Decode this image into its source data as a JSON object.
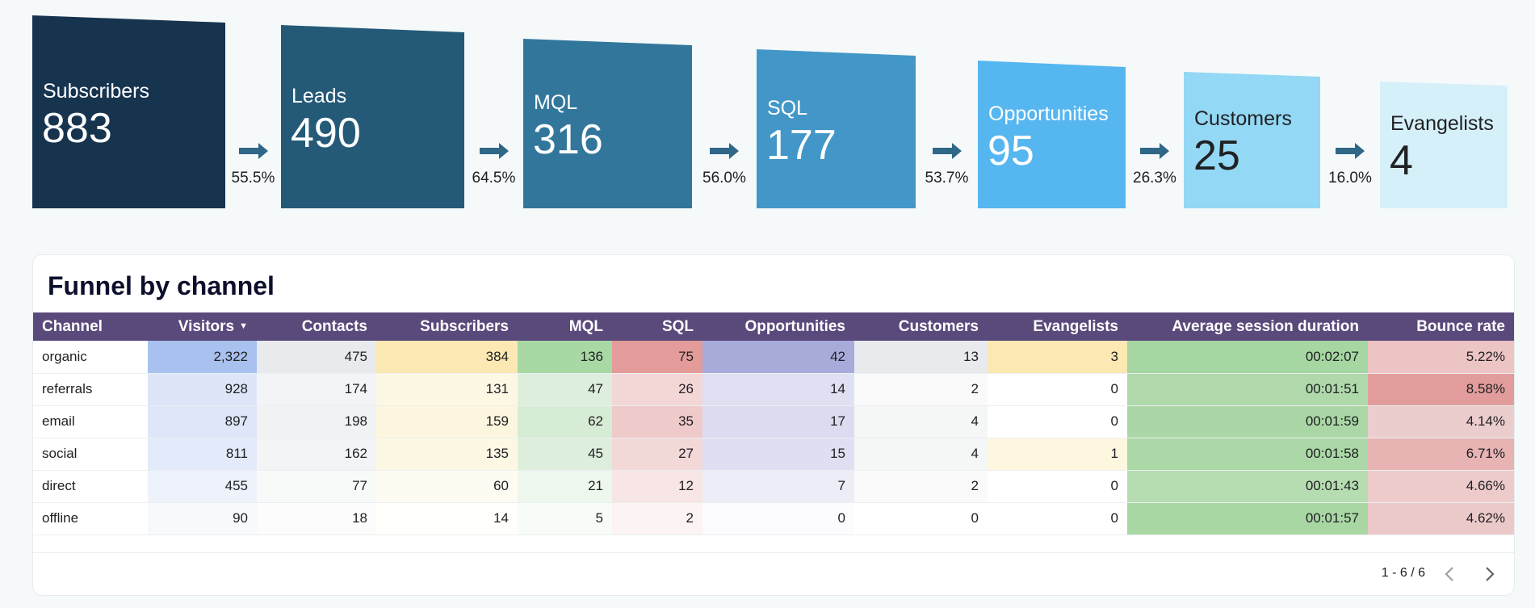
{
  "funnel": {
    "stages": [
      {
        "label": "Subscribers",
        "value": "883",
        "color": "#17344f",
        "text_color": "#ffffff"
      },
      {
        "label": "Leads",
        "value": "490",
        "color": "#245a77",
        "text_color": "#ffffff"
      },
      {
        "label": "MQL",
        "value": "316",
        "color": "#33769c",
        "text_color": "#ffffff"
      },
      {
        "label": "SQL",
        "value": "177",
        "color": "#4397c8",
        "text_color": "#ffffff"
      },
      {
        "label": "Opportunities",
        "value": "95",
        "color": "#56b6f0",
        "text_color": "#ffffff"
      },
      {
        "label": "Customers",
        "value": "25",
        "color": "#93d8f4",
        "text_color": "#202124"
      },
      {
        "label": "Evangelists",
        "value": "4",
        "color": "#d6f0fa",
        "text_color": "#202124"
      }
    ],
    "conversions": [
      "55.5%",
      "64.5%",
      "56.0%",
      "53.7%",
      "26.3%",
      "16.0%"
    ],
    "arrow_color": "#2f6787"
  },
  "table": {
    "title": "Funnel by channel",
    "header_color": "#5a4a7c",
    "columns": [
      "Channel",
      "Visitors",
      "Contacts",
      "Subscribers",
      "MQL",
      "SQL",
      "Opportunities",
      "Customers",
      "Evangelists",
      "Average session duration",
      "Bounce rate"
    ],
    "sorted_column": "Visitors",
    "rows": [
      {
        "cells": [
          "organic",
          "2,322",
          "475",
          "384",
          "136",
          "75",
          "42",
          "13",
          "3",
          "00:02:07",
          "5.22%"
        ]
      },
      {
        "cells": [
          "referrals",
          "928",
          "174",
          "131",
          "47",
          "26",
          "14",
          "2",
          "0",
          "00:01:51",
          "8.58%"
        ]
      },
      {
        "cells": [
          "email",
          "897",
          "198",
          "159",
          "62",
          "35",
          "17",
          "4",
          "0",
          "00:01:59",
          "4.14%"
        ]
      },
      {
        "cells": [
          "social",
          "811",
          "162",
          "135",
          "45",
          "27",
          "15",
          "4",
          "1",
          "00:01:58",
          "6.71%"
        ]
      },
      {
        "cells": [
          "direct",
          "455",
          "77",
          "60",
          "21",
          "12",
          "7",
          "2",
          "0",
          "00:01:43",
          "4.66%"
        ]
      },
      {
        "cells": [
          "offline",
          "90",
          "18",
          "14",
          "5",
          "2",
          "0",
          "0",
          "0",
          "00:01:57",
          "4.62%"
        ]
      }
    ],
    "cell_colors": [
      [
        "#ffffff",
        "#a8c1ee",
        "#e8eaed",
        "#fbe8b2",
        "#a8d9a5",
        "#e39c99",
        "#a8abda",
        "#e8eaed",
        "#fbe8b2",
        "#a6d6a2",
        "#ecc4c4"
      ],
      [
        "#ffffff",
        "#dde6f8",
        "#f3f4f5",
        "#fdf8e4",
        "#ddefdc",
        "#f3d6d6",
        "#dfe0f1",
        "#fafafa",
        "#ffffff",
        "#afd9aa",
        "#e29c9c"
      ],
      [
        "#ffffff",
        "#dee7f9",
        "#f1f2f3",
        "#fdf6de",
        "#d7ecd4",
        "#efcaca",
        "#dcdcf0",
        "#f5f6f6",
        "#ffffff",
        "#aad7a5",
        "#eccdcd"
      ],
      [
        "#ffffff",
        "#e3ebfa",
        "#f3f4f5",
        "#fdf8e4",
        "#ddefdc",
        "#f3d8d8",
        "#dedff1",
        "#f5f6f6",
        "#fdf7df",
        "#abd8a6",
        "#e7b3b3"
      ],
      [
        "#ffffff",
        "#eef2fb",
        "#f8f9f9",
        "#fefcf2",
        "#eef7ee",
        "#f8e5e5",
        "#ededf7",
        "#fafafa",
        "#ffffff",
        "#b6dcb1",
        "#edcbcb"
      ],
      [
        "#ffffff",
        "#f8f9fd",
        "#fcfcfc",
        "#fffefa",
        "#f8fcf8",
        "#fcf3f3",
        "#fcfcfe",
        "#ffffff",
        "#ffffff",
        "#a9d7a4",
        "#ecc9c9"
      ]
    ],
    "pagination": {
      "info": "1 - 6 / 6",
      "prev_icon": "chevron-left-icon",
      "next_icon": "chevron-right-icon"
    }
  }
}
